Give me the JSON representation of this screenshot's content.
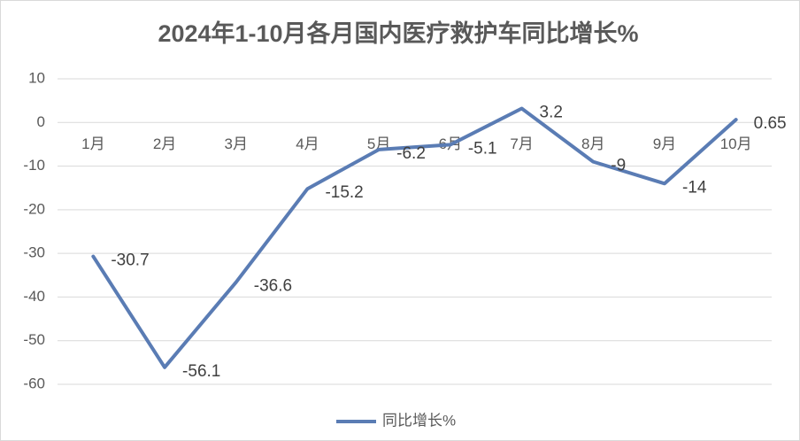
{
  "chart_data": {
    "type": "line",
    "title": "2024年1-10月各月国内医疗救护车同比增长%",
    "categories": [
      "1月",
      "2月",
      "3月",
      "4月",
      "5月",
      "6月",
      "7月",
      "8月",
      "9月",
      "10月"
    ],
    "series": [
      {
        "name": "同比增长%",
        "color": "#5a7cb4",
        "values": [
          -30.7,
          -56.1,
          -36.6,
          -15.2,
          -6.2,
          -5.1,
          3.2,
          -9,
          -14,
          0.65
        ]
      }
    ],
    "ylim": [
      -60,
      10
    ],
    "yticks": [
      -60,
      -50,
      -40,
      -30,
      -20,
      -10,
      0,
      10
    ],
    "grid": true,
    "legend": "bottom"
  }
}
